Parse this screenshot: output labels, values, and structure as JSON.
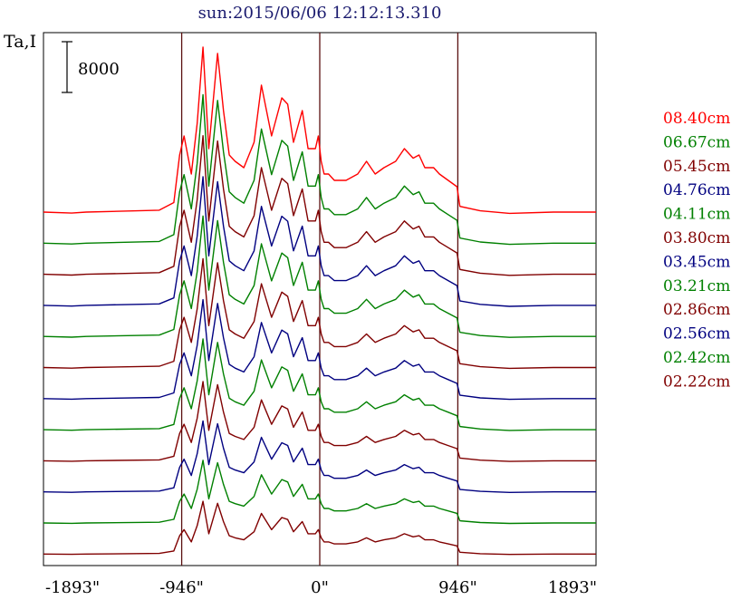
{
  "chart_data": {
    "type": "line",
    "title": "sun:2015/06/06 12:12:13.310",
    "ylabel": "Ta,I",
    "xlabel": "",
    "scale_bar_label": "8000",
    "scale_bar_value": 8000,
    "xlim": [
      -1893,
      1893
    ],
    "x_ticks": [
      -1893,
      -946,
      0,
      946,
      1893
    ],
    "x_tick_labels": [
      "-1893\"",
      "-946\"",
      "0\"",
      "946\"",
      "1893\""
    ],
    "vertical_lines_at": [
      -946,
      0,
      946
    ],
    "grid": false,
    "legend_placement": "right",
    "x": [
      -1893,
      -1700,
      -1600,
      -1100,
      -1000,
      -960,
      -930,
      -880,
      -840,
      -800,
      -760,
      -700,
      -660,
      -620,
      -580,
      -520,
      -450,
      -400,
      -330,
      -260,
      -220,
      -180,
      -120,
      -80,
      -30,
      -10,
      10,
      30,
      60,
      100,
      180,
      260,
      320,
      380,
      440,
      520,
      580,
      640,
      680,
      720,
      780,
      820,
      880,
      940,
      960,
      1100,
      1300,
      1600,
      1893
    ],
    "profile": [
      0,
      -150,
      0,
      300,
      1500,
      9000,
      12000,
      6000,
      14000,
      26000,
      10000,
      25000,
      16000,
      9000,
      8000,
      7000,
      11000,
      20000,
      12000,
      18000,
      17000,
      11000,
      16000,
      10000,
      10000,
      12000,
      8000,
      6000,
      6000,
      5000,
      5000,
      6000,
      8000,
      6000,
      7000,
      8000,
      10000,
      8500,
      9000,
      7000,
      7000,
      6000,
      5000,
      4000,
      900,
      200,
      -200,
      0,
      0
    ],
    "series": [
      {
        "name": "08.40cm",
        "color": "#ff0000",
        "amplitude": 1.0
      },
      {
        "name": "06.67cm",
        "color": "#008000",
        "amplitude": 0.9
      },
      {
        "name": "05.45cm",
        "color": "#800000",
        "amplitude": 0.84
      },
      {
        "name": "04.76cm",
        "color": "#000080",
        "amplitude": 0.78
      },
      {
        "name": "04.11cm",
        "color": "#008000",
        "amplitude": 0.73
      },
      {
        "name": "03.80cm",
        "color": "#800000",
        "amplitude": 0.66
      },
      {
        "name": "03.45cm",
        "color": "#000080",
        "amplitude": 0.6
      },
      {
        "name": "03.21cm",
        "color": "#008000",
        "amplitude": 0.55
      },
      {
        "name": "02.86cm",
        "color": "#800000",
        "amplitude": 0.48
      },
      {
        "name": "02.56cm",
        "color": "#000080",
        "amplitude": 0.43
      },
      {
        "name": "02.42cm",
        "color": "#008000",
        "amplitude": 0.38
      },
      {
        "name": "02.22cm",
        "color": "#800000",
        "amplitude": 0.32
      }
    ]
  }
}
